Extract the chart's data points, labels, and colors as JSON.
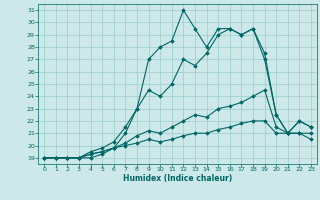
{
  "xlabel": "Humidex (Indice chaleur)",
  "bg_color": "#cce8e8",
  "grid_color": "#99cccc",
  "line_color": "#006666",
  "marker_color": "#006666",
  "xlim": [
    -0.5,
    23.5
  ],
  "ylim": [
    18.5,
    31.5
  ],
  "yticks": [
    19,
    20,
    21,
    22,
    23,
    24,
    25,
    26,
    27,
    28,
    29,
    30,
    31
  ],
  "xticks": [
    0,
    1,
    2,
    3,
    4,
    5,
    6,
    7,
    8,
    9,
    10,
    11,
    12,
    13,
    14,
    15,
    16,
    17,
    18,
    19,
    20,
    21,
    22,
    23
  ],
  "series": [
    {
      "x": [
        0,
        1,
        2,
        3,
        4,
        5,
        6,
        7,
        8,
        9,
        10,
        11,
        12,
        13,
        14,
        15,
        16,
        17,
        18,
        19,
        20,
        21,
        22,
        23
      ],
      "y": [
        19,
        19,
        19,
        19,
        19.3,
        19.5,
        19.8,
        20.0,
        20.2,
        20.5,
        20.3,
        20.5,
        20.8,
        21.0,
        21.0,
        21.3,
        21.5,
        21.8,
        22.0,
        22.0,
        21.0,
        21.0,
        21.0,
        21.0
      ]
    },
    {
      "x": [
        0,
        1,
        2,
        3,
        4,
        5,
        6,
        7,
        8,
        9,
        10,
        11,
        12,
        13,
        14,
        15,
        16,
        17,
        18,
        19,
        20,
        21,
        22,
        23
      ],
      "y": [
        19,
        19,
        19,
        19,
        19.3,
        19.5,
        19.8,
        20.2,
        20.8,
        21.2,
        21.0,
        21.5,
        22.0,
        22.5,
        22.3,
        23.0,
        23.2,
        23.5,
        24.0,
        24.5,
        21.5,
        21.0,
        21.0,
        20.5
      ]
    },
    {
      "x": [
        0,
        1,
        2,
        3,
        4,
        5,
        6,
        7,
        8,
        9,
        10,
        11,
        12,
        13,
        14,
        15,
        16,
        17,
        18,
        19,
        20,
        21,
        22,
        23
      ],
      "y": [
        19,
        19,
        19,
        19,
        19.5,
        19.8,
        20.3,
        21.5,
        23.0,
        24.5,
        24.0,
        25.0,
        27.0,
        26.5,
        27.5,
        29.0,
        29.5,
        29.0,
        29.5,
        27.0,
        22.5,
        21.0,
        22.0,
        21.5
      ]
    },
    {
      "x": [
        0,
        1,
        2,
        3,
        4,
        5,
        6,
        7,
        8,
        9,
        10,
        11,
        12,
        13,
        14,
        15,
        16,
        17,
        18,
        19,
        20,
        21,
        22,
        23
      ],
      "y": [
        19,
        19,
        19,
        19,
        19.0,
        19.3,
        19.8,
        21.0,
        23.0,
        27.0,
        28.0,
        28.5,
        31.0,
        29.5,
        28.0,
        29.5,
        29.5,
        29.0,
        29.5,
        27.5,
        22.5,
        21.0,
        22.0,
        21.5
      ]
    }
  ]
}
